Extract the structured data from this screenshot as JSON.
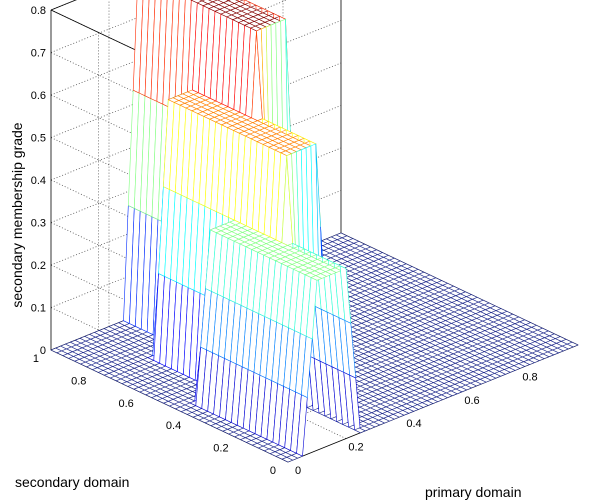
{
  "chart_data": {
    "type": "surface",
    "title": "",
    "xlabel": "primary domain",
    "ylabel": "secondary domain",
    "zlabel": "secondary membership grade",
    "x_ticks": [
      "0",
      "0.2",
      "0.4",
      "0.6",
      "0.8"
    ],
    "y_ticks": [
      "0",
      "0.2",
      "0.4",
      "0.6",
      "0.8",
      "1"
    ],
    "z_ticks": [
      "0",
      "0.1",
      "0.2",
      "0.3",
      "0.4",
      "0.5",
      "0.6",
      "0.7",
      "0.8"
    ],
    "xlim": [
      0,
      1
    ],
    "ylim": [
      0,
      1
    ],
    "zlim": [
      0,
      0.8
    ],
    "grid": true,
    "colormap": "jet",
    "mesh_color": "#1f2a8c",
    "bumps": [
      {
        "x_center": 0.15,
        "y_from": 0.0,
        "y_to": 0.45,
        "height": 0.4
      },
      {
        "x_center": 0.25,
        "y_from": 0.25,
        "y_to": 0.75,
        "height": 0.6
      },
      {
        "x_center": 0.35,
        "y_from": 0.5,
        "y_to": 1.0,
        "height": 0.8
      }
    ],
    "x_halfwidth_top": 0.05,
    "x_halfwidth_base": 0.1
  }
}
